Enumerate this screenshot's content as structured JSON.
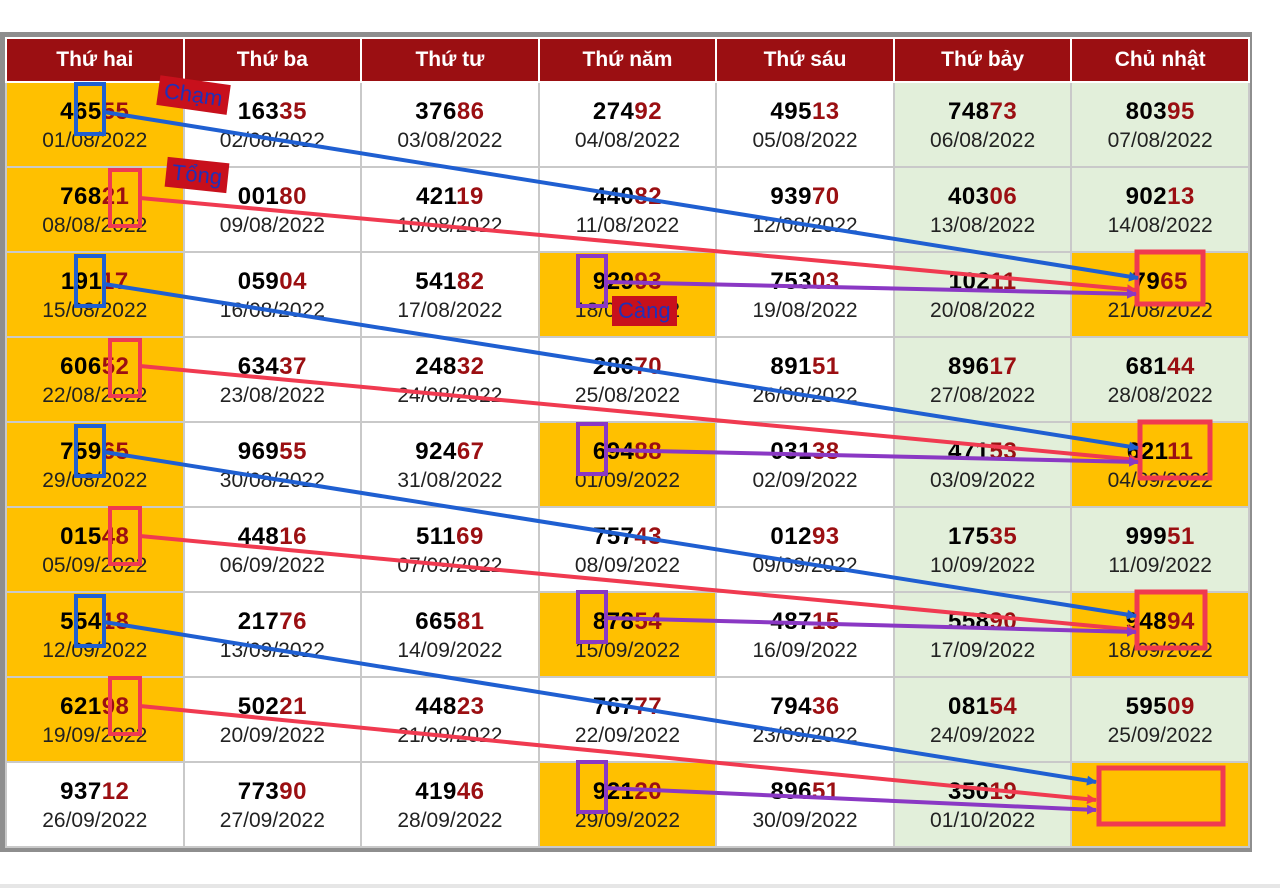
{
  "header": [
    "Thứ hai",
    "Thứ ba",
    "Thứ tư",
    "Thứ năm",
    "Thứ sáu",
    "Thứ bảy",
    "Chủ nhật"
  ],
  "rows": [
    [
      {
        "head": "465",
        "tail": "55",
        "date": "01/08/2022",
        "hl": true
      },
      {
        "head": "163",
        "tail": "35",
        "date": "02/08/2022"
      },
      {
        "head": "376",
        "tail": "86",
        "date": "03/08/2022"
      },
      {
        "head": "274",
        "tail": "92",
        "date": "04/08/2022"
      },
      {
        "head": "495",
        "tail": "13",
        "date": "05/08/2022"
      },
      {
        "head": "748",
        "tail": "73",
        "date": "06/08/2022",
        "we": true
      },
      {
        "head": "803",
        "tail": "95",
        "date": "07/08/2022",
        "we": true
      }
    ],
    [
      {
        "head": "768",
        "tail": "21",
        "date": "08/08/2022",
        "hl": true
      },
      {
        "head": "001",
        "tail": "80",
        "date": "09/08/2022"
      },
      {
        "head": "421",
        "tail": "19",
        "date": "10/08/2022"
      },
      {
        "head": "440",
        "tail": "82",
        "date": "11/08/2022"
      },
      {
        "head": "939",
        "tail": "70",
        "date": "12/08/2022"
      },
      {
        "head": "403",
        "tail": "06",
        "date": "13/08/2022",
        "we": true
      },
      {
        "head": "902",
        "tail": "13",
        "date": "14/08/2022",
        "we": true
      }
    ],
    [
      {
        "head": "191",
        "tail": "17",
        "date": "15/08/2022",
        "hl": true
      },
      {
        "head": "059",
        "tail": "04",
        "date": "16/08/2022"
      },
      {
        "head": "541",
        "tail": "82",
        "date": "17/08/2022"
      },
      {
        "head": "929",
        "tail": "93",
        "date": "18/08/2022",
        "hl": true
      },
      {
        "head": "753",
        "tail": "03",
        "date": "19/08/2022"
      },
      {
        "head": "102",
        "tail": "11",
        "date": "20/08/2022",
        "we": true
      },
      {
        "head": "79",
        "tail": "65",
        "date": "21/08/2022",
        "hl": true
      }
    ],
    [
      {
        "head": "606",
        "tail": "52",
        "date": "22/08/2022",
        "hl": true
      },
      {
        "head": "634",
        "tail": "37",
        "date": "23/08/2022"
      },
      {
        "head": "248",
        "tail": "32",
        "date": "24/08/2022"
      },
      {
        "head": "286",
        "tail": "70",
        "date": "25/08/2022"
      },
      {
        "head": "891",
        "tail": "51",
        "date": "26/08/2022"
      },
      {
        "head": "896",
        "tail": "17",
        "date": "27/08/2022",
        "we": true
      },
      {
        "head": "681",
        "tail": "44",
        "date": "28/08/2022",
        "we": true
      }
    ],
    [
      {
        "head": "759",
        "tail": "65",
        "date": "29/08/2022",
        "hl": true
      },
      {
        "head": "969",
        "tail": "55",
        "date": "30/08/2022"
      },
      {
        "head": "924",
        "tail": "67",
        "date": "31/08/2022"
      },
      {
        "head": "694",
        "tail": "88",
        "date": "01/09/2022",
        "hl": true
      },
      {
        "head": "031",
        "tail": "38",
        "date": "02/09/2022"
      },
      {
        "head": "471",
        "tail": "53",
        "date": "03/09/2022",
        "we": true
      },
      {
        "head": "621",
        "tail": "11",
        "date": "04/09/2022",
        "hl": true
      }
    ],
    [
      {
        "head": "015",
        "tail": "48",
        "date": "05/09/2022",
        "hl": true
      },
      {
        "head": "448",
        "tail": "16",
        "date": "06/09/2022"
      },
      {
        "head": "511",
        "tail": "69",
        "date": "07/09/2022"
      },
      {
        "head": "757",
        "tail": "43",
        "date": "08/09/2022"
      },
      {
        "head": "012",
        "tail": "93",
        "date": "09/09/2022"
      },
      {
        "head": "175",
        "tail": "35",
        "date": "10/09/2022",
        "we": true
      },
      {
        "head": "999",
        "tail": "51",
        "date": "11/09/2022",
        "we": true
      }
    ],
    [
      {
        "head": "554",
        "tail": "18",
        "date": "12/09/2022",
        "hl": true
      },
      {
        "head": "217",
        "tail": "76",
        "date": "13/09/2022"
      },
      {
        "head": "665",
        "tail": "81",
        "date": "14/09/2022"
      },
      {
        "head": "878",
        "tail": "54",
        "date": "15/09/2022",
        "hl": true
      },
      {
        "head": "487",
        "tail": "15",
        "date": "16/09/2022"
      },
      {
        "head": "558",
        "tail": "90",
        "date": "17/09/2022",
        "we": true
      },
      {
        "head": "948",
        "tail": "94",
        "date": "18/09/2022",
        "hl": true
      }
    ],
    [
      {
        "head": "621",
        "tail": "98",
        "date": "19/09/2022",
        "hl": true
      },
      {
        "head": "502",
        "tail": "21",
        "date": "20/09/2022"
      },
      {
        "head": "448",
        "tail": "23",
        "date": "21/09/2022"
      },
      {
        "head": "767",
        "tail": "77",
        "date": "22/09/2022"
      },
      {
        "head": "794",
        "tail": "36",
        "date": "23/09/2022"
      },
      {
        "head": "081",
        "tail": "54",
        "date": "24/09/2022",
        "we": true
      },
      {
        "head": "595",
        "tail": "09",
        "date": "25/09/2022",
        "we": true
      }
    ],
    [
      {
        "head": "937",
        "tail": "12",
        "date": "26/09/2022"
      },
      {
        "head": "773",
        "tail": "90",
        "date": "27/09/2022"
      },
      {
        "head": "419",
        "tail": "46",
        "date": "28/09/2022"
      },
      {
        "head": "921",
        "tail": "20",
        "date": "29/09/2022",
        "hl": true
      },
      {
        "head": "896",
        "tail": "51",
        "date": "30/09/2022"
      },
      {
        "head": "350",
        "tail": "19",
        "date": "01/10/2022",
        "we": true
      },
      {
        "head": "",
        "tail": "",
        "date": "",
        "hl": true
      }
    ]
  ],
  "annotations": {
    "cham": "Chạm",
    "tong": "Tổng",
    "cang": "Càng"
  },
  "colors": {
    "header": "#9b0f12",
    "highlight": "#ffc000",
    "weekend": "#e2efda",
    "blue_arrow": "#1f5fd1",
    "red_arrow": "#f03a50",
    "purple_arrow": "#8a38c4"
  }
}
